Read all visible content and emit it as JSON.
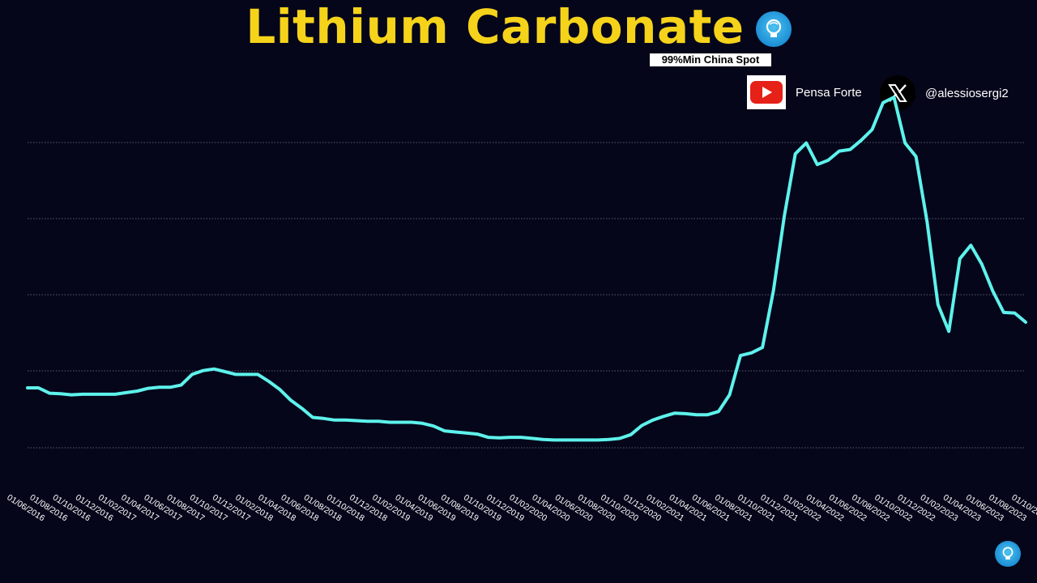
{
  "header": {
    "title": "Lithium Carbonate",
    "subtitle": "99%Min China Spot"
  },
  "social": {
    "youtube_label": "Pensa Forte",
    "x_label": "@alessiosergi2"
  },
  "colors": {
    "title": "#f5d31a",
    "line": "#5ef2ec",
    "background": "#05061a",
    "grid": "#9aa0b0"
  },
  "icons": [
    "lightbulb-logo-icon",
    "youtube-icon",
    "x-logo-icon"
  ],
  "chart_data": {
    "type": "line",
    "grid": "horizontal dotted",
    "y_tick_labels_shown": false,
    "ylim": [
      0,
      620000
    ],
    "x_tick_labels": [
      "01/06/2016",
      "01/08/2016",
      "01/10/2016",
      "01/12/2016",
      "01/02/2017",
      "01/04/2017",
      "01/06/2017",
      "01/08/2017",
      "01/10/2017",
      "01/12/2017",
      "01/02/2018",
      "01/04/2018",
      "01/06/2018",
      "01/08/2018",
      "01/10/2018",
      "01/12/2018",
      "01/02/2019",
      "01/04/2019",
      "01/06/2019",
      "01/08/2019",
      "01/10/2019",
      "01/12/2019",
      "01/02/2020",
      "01/04/2020",
      "01/06/2020",
      "01/08/2020",
      "01/10/2020",
      "01/12/2020",
      "01/02/2021",
      "01/04/2021",
      "01/06/2021",
      "01/08/2021",
      "01/10/2021",
      "01/12/2021",
      "01/02/2022",
      "01/04/2022",
      "01/06/2022",
      "01/08/2022",
      "01/10/2022",
      "01/12/2022",
      "01/02/2023",
      "01/04/2023",
      "01/06/2023",
      "01/08/2023",
      "01/10/2023"
    ],
    "series": [
      {
        "values": [
          140000,
          140000,
          130000,
          129000,
          127000,
          128000,
          128000,
          128000,
          128000,
          131000,
          134000,
          139000,
          141000,
          141000,
          145000,
          165000,
          172000,
          175000,
          170000,
          165000,
          165000,
          165000,
          152000,
          137000,
          117000,
          102000,
          85000,
          83000,
          80000,
          80000,
          79000,
          78000,
          78000,
          76000,
          76000,
          76000,
          74000,
          69000,
          60000,
          58000,
          56000,
          54000,
          48000,
          47000,
          48000,
          48000,
          46000,
          44000,
          43000,
          43000,
          43000,
          43000,
          43000,
          44000,
          46000,
          53000,
          70000,
          80000,
          87000,
          93000,
          92000,
          90000,
          90000,
          96000,
          127000,
          200000,
          205000,
          215000,
          320000,
          460000,
          575000,
          595000,
          555000,
          563000,
          580000,
          583000,
          600000,
          620000,
          670000,
          680000,
          595000,
          570000,
          450000,
          295000,
          245000,
          380000,
          405000,
          370000,
          320000,
          280000,
          279000,
          262000
        ]
      }
    ]
  }
}
